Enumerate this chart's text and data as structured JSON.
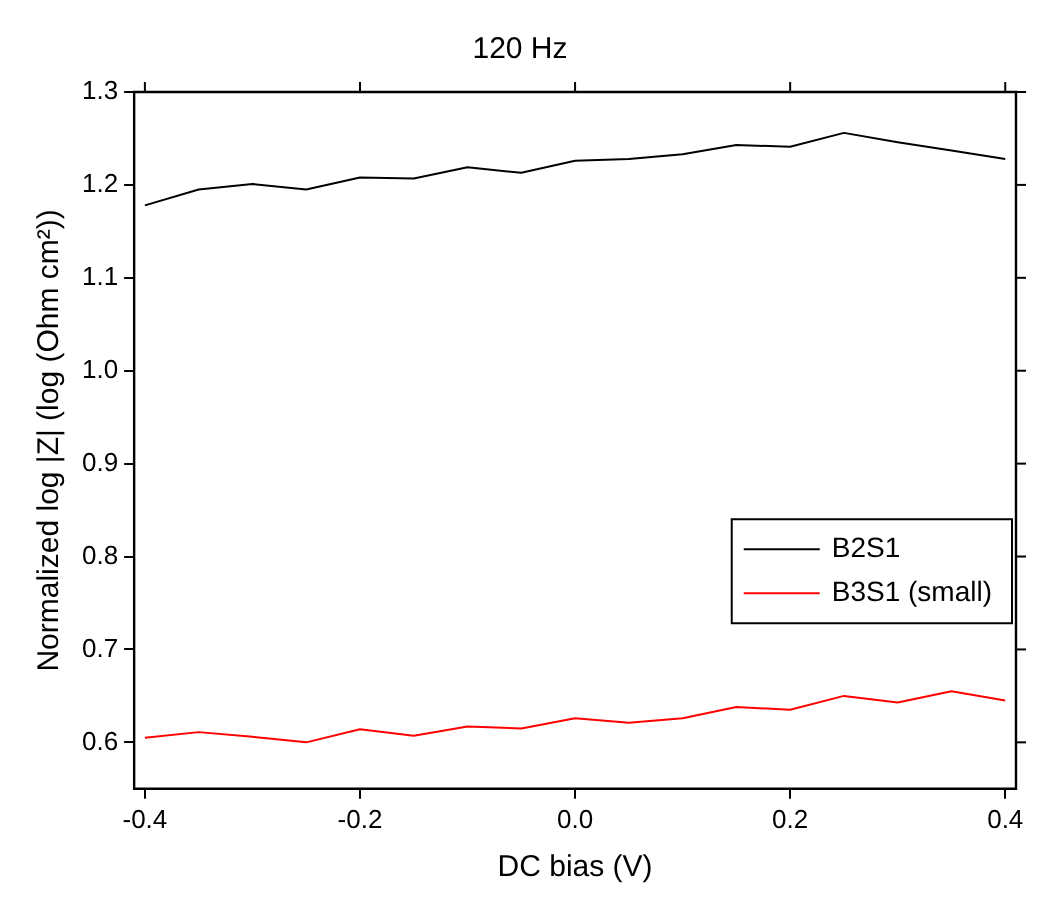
{
  "chart_data": {
    "type": "line",
    "title": "120 Hz",
    "xlabel": "DC bias (V)",
    "ylabel": "Normalized log |Z| (log (Ohm cm²))",
    "x": [
      -0.4,
      -0.35,
      -0.3,
      -0.25,
      -0.2,
      -0.15,
      -0.1,
      -0.05,
      0,
      0.05,
      0.1,
      0.15,
      0.2,
      0.25,
      0.3,
      0.35,
      0.4
    ],
    "series": [
      {
        "name": "B2S1",
        "color": "#000000",
        "values": [
          1.178,
          1.195,
          1.201,
          1.195,
          1.208,
          1.207,
          1.219,
          1.213,
          1.226,
          1.228,
          1.233,
          1.243,
          1.241,
          1.256,
          1.246,
          1.237,
          1.228
        ]
      },
      {
        "name": "B3S1 (small)",
        "color": "#ff0000",
        "values": [
          0.605,
          0.611,
          0.606,
          0.6,
          0.614,
          0.607,
          0.617,
          0.615,
          0.626,
          0.621,
          0.626,
          0.638,
          0.635,
          0.65,
          0.643,
          0.655,
          0.645
        ]
      }
    ],
    "xlim": [
      -0.41,
      0.41
    ],
    "xticks": [
      {
        "value": -0.4,
        "label": "-0.4"
      },
      {
        "value": -0.2,
        "label": "-0.2"
      },
      {
        "value": 0,
        "label": "0.0"
      },
      {
        "value": 0.2,
        "label": "0.2"
      },
      {
        "value": 0.4,
        "label": "0.4"
      }
    ],
    "ylim": [
      0.55,
      1.3
    ],
    "yticks": [
      {
        "value": 0.6,
        "label": "0.6"
      },
      {
        "value": 0.7,
        "label": "0.7"
      },
      {
        "value": 0.8,
        "label": "0.8"
      },
      {
        "value": 0.9,
        "label": "0.9"
      },
      {
        "value": 1.0,
        "label": "1.0"
      },
      {
        "value": 1.1,
        "label": "1.1"
      },
      {
        "value": 1.2,
        "label": "1.2"
      },
      {
        "value": 1.3,
        "label": "1.3"
      }
    ],
    "grid": false,
    "legend": "right",
    "marker": "none",
    "line_style": "solid"
  }
}
